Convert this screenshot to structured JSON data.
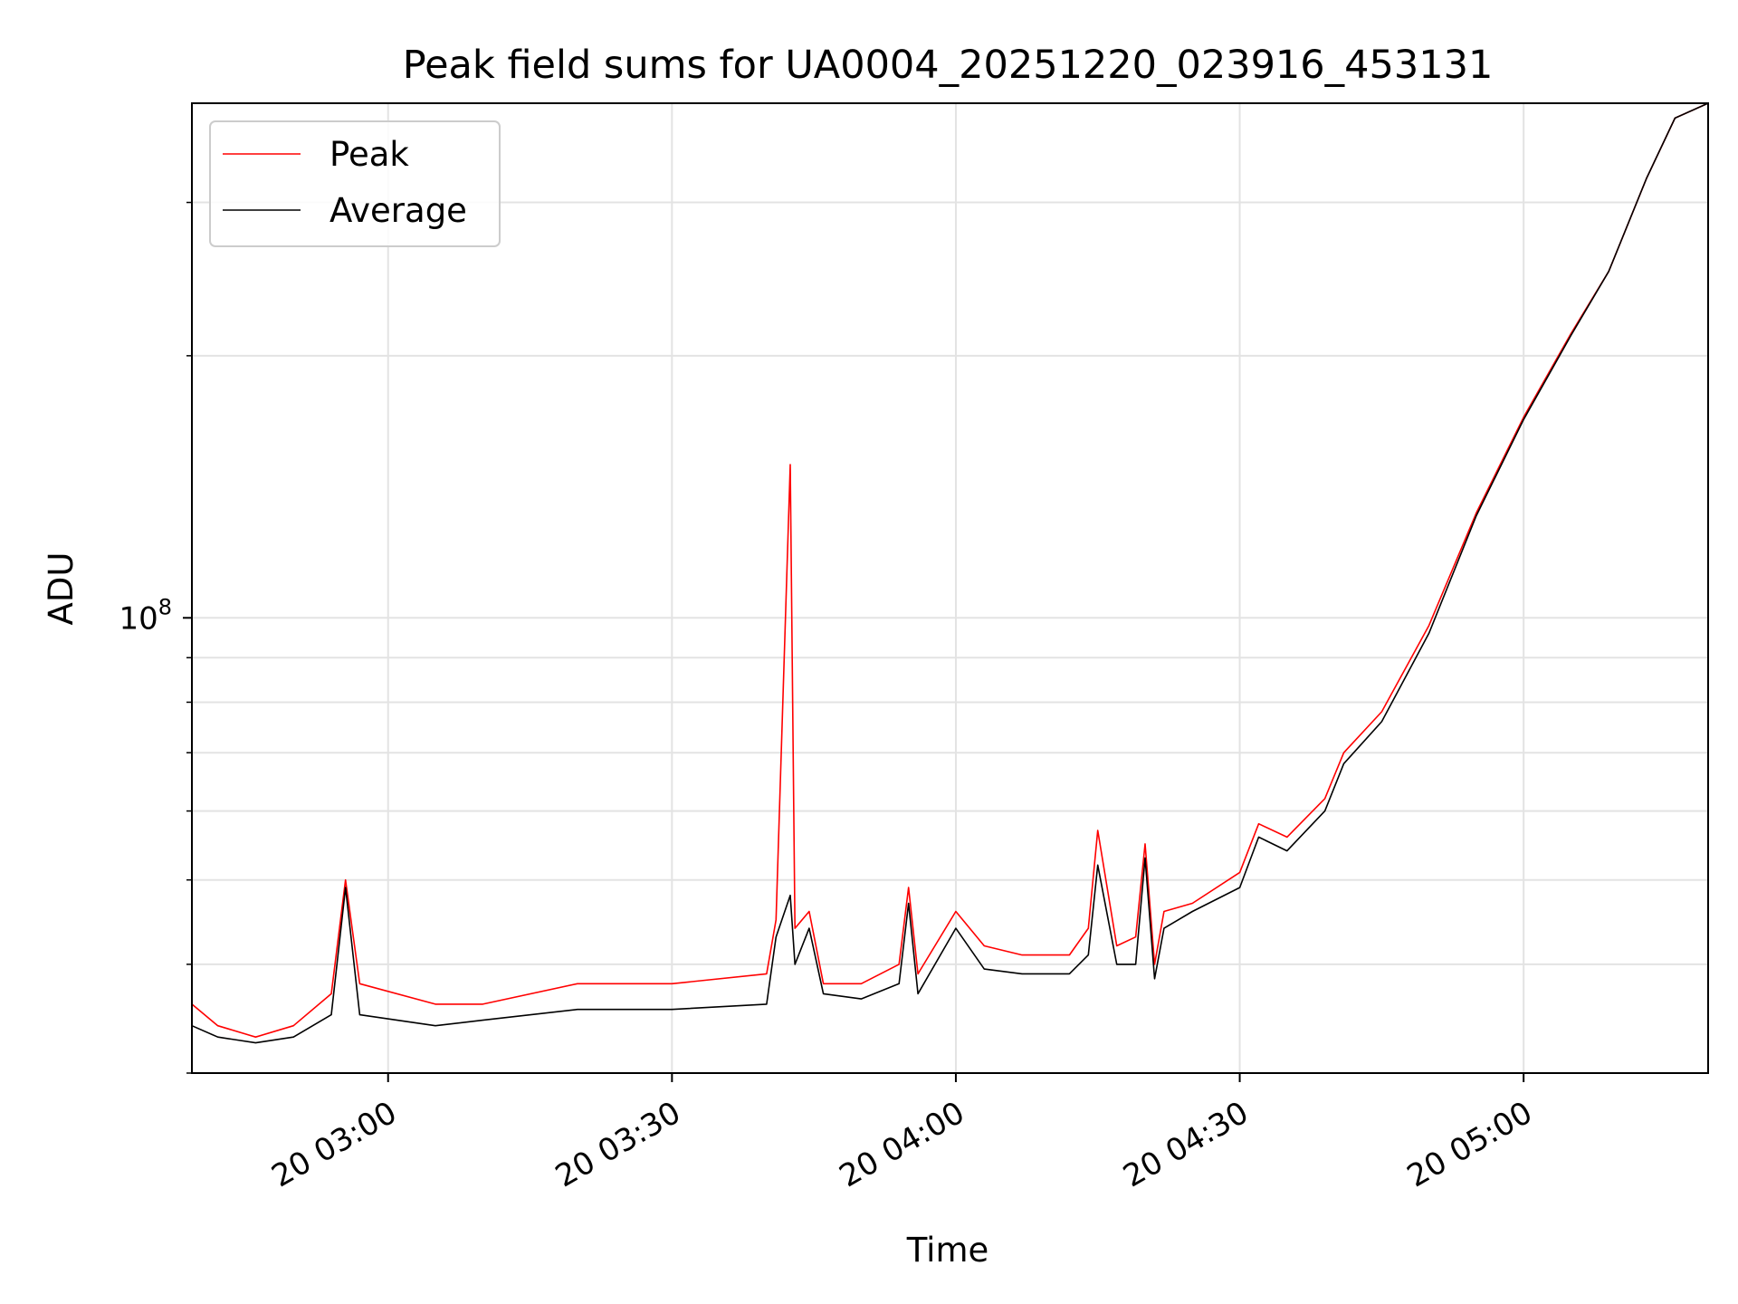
{
  "chart_data": {
    "type": "line",
    "title": "Peak field sums for UA0004_20251220_023916_453131",
    "xlabel": "Time",
    "ylabel": "ADU",
    "yscale": "log",
    "ylim": [
      30000000.0,
      390000000.0
    ],
    "y_major_tick": {
      "value": 100000000,
      "base": "10",
      "exponent": "8"
    },
    "y_minor_ticks": [
      30000000,
      40000000,
      50000000,
      60000000,
      70000000,
      80000000,
      90000000,
      200000000,
      300000000
    ],
    "xlim": [
      "2025-12-20T02:39:16",
      "2025-12-20T05:19:30"
    ],
    "x_ticks": [
      {
        "t": "2025-12-20T03:00:00",
        "label": "20 03:00"
      },
      {
        "t": "2025-12-20T03:30:00",
        "label": "20 03:30"
      },
      {
        "t": "2025-12-20T04:00:00",
        "label": "20 04:00"
      },
      {
        "t": "2025-12-20T04:30:00",
        "label": "20 04:30"
      },
      {
        "t": "2025-12-20T05:00:00",
        "label": "20 05:00"
      }
    ],
    "grid": true,
    "legend_position": "top-left",
    "series": [
      {
        "name": "Peak",
        "color": "#ff0000",
        "points": [
          [
            "2025-12-20T02:39:16",
            36000000.0
          ],
          [
            "2025-12-20T02:42:00",
            34000000.0
          ],
          [
            "2025-12-20T02:46:00",
            33000000.0
          ],
          [
            "2025-12-20T02:50:00",
            34000000.0
          ],
          [
            "2025-12-20T02:54:00",
            37000000.0
          ],
          [
            "2025-12-20T02:55:30",
            50000000.0
          ],
          [
            "2025-12-20T02:57:00",
            38000000.0
          ],
          [
            "2025-12-20T03:05:00",
            36000000.0
          ],
          [
            "2025-12-20T03:10:00",
            36000000.0
          ],
          [
            "2025-12-20T03:20:00",
            38000000.0
          ],
          [
            "2025-12-20T03:30:00",
            38000000.0
          ],
          [
            "2025-12-20T03:40:00",
            39000000.0
          ],
          [
            "2025-12-20T03:41:00",
            45000000.0
          ],
          [
            "2025-12-20T03:42:30",
            150000000.0
          ],
          [
            "2025-12-20T03:43:00",
            44000000.0
          ],
          [
            "2025-12-20T03:44:30",
            46000000.0
          ],
          [
            "2025-12-20T03:46:00",
            38000000.0
          ],
          [
            "2025-12-20T03:50:00",
            38000000.0
          ],
          [
            "2025-12-20T03:54:00",
            40000000.0
          ],
          [
            "2025-12-20T03:55:00",
            49000000.0
          ],
          [
            "2025-12-20T03:56:00",
            39000000.0
          ],
          [
            "2025-12-20T04:00:00",
            46000000.0
          ],
          [
            "2025-12-20T04:03:00",
            42000000.0
          ],
          [
            "2025-12-20T04:07:00",
            41000000.0
          ],
          [
            "2025-12-20T04:12:00",
            41000000.0
          ],
          [
            "2025-12-20T04:14:00",
            44000000.0
          ],
          [
            "2025-12-20T04:15:00",
            57000000.0
          ],
          [
            "2025-12-20T04:17:00",
            42000000.0
          ],
          [
            "2025-12-20T04:19:00",
            43000000.0
          ],
          [
            "2025-12-20T04:20:00",
            55000000.0
          ],
          [
            "2025-12-20T04:21:00",
            40000000.0
          ],
          [
            "2025-12-20T04:22:00",
            46000000.0
          ],
          [
            "2025-12-20T04:25:00",
            47000000.0
          ],
          [
            "2025-12-20T04:30:00",
            51000000.0
          ],
          [
            "2025-12-20T04:32:00",
            58000000.0
          ],
          [
            "2025-12-20T04:35:00",
            56000000.0
          ],
          [
            "2025-12-20T04:39:00",
            62000000.0
          ],
          [
            "2025-12-20T04:41:00",
            70000000.0
          ],
          [
            "2025-12-20T04:45:00",
            78000000.0
          ],
          [
            "2025-12-20T04:50:00",
            98000000.0
          ],
          [
            "2025-12-20T04:55:00",
            132000000.0
          ],
          [
            "2025-12-20T05:00:00",
            170000000.0
          ],
          [
            "2025-12-20T05:05:00",
            212000000.0
          ],
          [
            "2025-12-20T05:09:00",
            250000000.0
          ],
          [
            "2025-12-20T05:13:00",
            320000000.0
          ],
          [
            "2025-12-20T05:16:00",
            375000000.0
          ],
          [
            "2025-12-20T05:19:30",
            390000000.0
          ]
        ]
      },
      {
        "name": "Average",
        "color": "#000000",
        "points": [
          [
            "2025-12-20T02:39:16",
            34000000.0
          ],
          [
            "2025-12-20T02:42:00",
            33000000.0
          ],
          [
            "2025-12-20T02:46:00",
            32500000.0
          ],
          [
            "2025-12-20T02:50:00",
            33000000.0
          ],
          [
            "2025-12-20T02:54:00",
            35000000.0
          ],
          [
            "2025-12-20T02:55:30",
            49000000.0
          ],
          [
            "2025-12-20T02:57:00",
            35000000.0
          ],
          [
            "2025-12-20T03:05:00",
            34000000.0
          ],
          [
            "2025-12-20T03:10:00",
            34500000.0
          ],
          [
            "2025-12-20T03:20:00",
            35500000.0
          ],
          [
            "2025-12-20T03:30:00",
            35500000.0
          ],
          [
            "2025-12-20T03:40:00",
            36000000.0
          ],
          [
            "2025-12-20T03:41:00",
            43000000.0
          ],
          [
            "2025-12-20T03:42:30",
            48000000.0
          ],
          [
            "2025-12-20T03:43:00",
            40000000.0
          ],
          [
            "2025-12-20T03:44:30",
            44000000.0
          ],
          [
            "2025-12-20T03:46:00",
            37000000.0
          ],
          [
            "2025-12-20T03:50:00",
            36500000.0
          ],
          [
            "2025-12-20T03:54:00",
            38000000.0
          ],
          [
            "2025-12-20T03:55:00",
            47000000.0
          ],
          [
            "2025-12-20T03:56:00",
            37000000.0
          ],
          [
            "2025-12-20T04:00:00",
            44000000.0
          ],
          [
            "2025-12-20T04:03:00",
            39500000.0
          ],
          [
            "2025-12-20T04:07:00",
            39000000.0
          ],
          [
            "2025-12-20T04:12:00",
            39000000.0
          ],
          [
            "2025-12-20T04:14:00",
            41000000.0
          ],
          [
            "2025-12-20T04:15:00",
            52000000.0
          ],
          [
            "2025-12-20T04:17:00",
            40000000.0
          ],
          [
            "2025-12-20T04:19:00",
            40000000.0
          ],
          [
            "2025-12-20T04:20:00",
            53000000.0
          ],
          [
            "2025-12-20T04:21:00",
            38500000.0
          ],
          [
            "2025-12-20T04:22:00",
            44000000.0
          ],
          [
            "2025-12-20T04:25:00",
            46000000.0
          ],
          [
            "2025-12-20T04:30:00",
            49000000.0
          ],
          [
            "2025-12-20T04:32:00",
            56000000.0
          ],
          [
            "2025-12-20T04:35:00",
            54000000.0
          ],
          [
            "2025-12-20T04:39:00",
            60000000.0
          ],
          [
            "2025-12-20T04:41:00",
            68000000.0
          ],
          [
            "2025-12-20T04:45:00",
            76000000.0
          ],
          [
            "2025-12-20T04:50:00",
            96000000.0
          ],
          [
            "2025-12-20T04:55:00",
            131000000.0
          ],
          [
            "2025-12-20T05:00:00",
            169000000.0
          ],
          [
            "2025-12-20T05:05:00",
            211000000.0
          ],
          [
            "2025-12-20T05:09:00",
            250000000.0
          ],
          [
            "2025-12-20T05:13:00",
            320000000.0
          ],
          [
            "2025-12-20T05:16:00",
            375000000.0
          ],
          [
            "2025-12-20T05:19:30",
            390000000.0
          ]
        ]
      }
    ]
  }
}
